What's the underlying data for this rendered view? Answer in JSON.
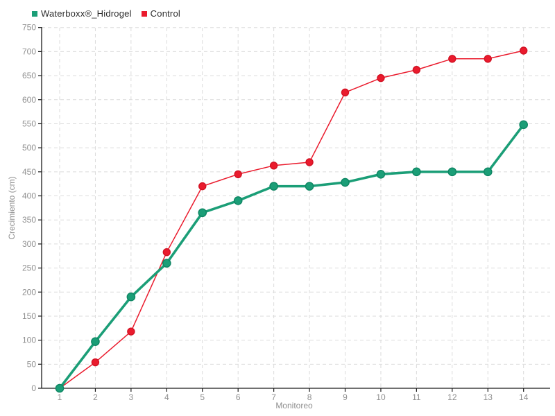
{
  "chart_data": {
    "type": "line",
    "title": "",
    "xlabel": "Monitoreo",
    "ylabel": "Crecimiento (cm)",
    "categories": [
      1,
      2,
      3,
      4,
      5,
      6,
      7,
      8,
      9,
      10,
      11,
      12,
      13,
      14
    ],
    "xtick_labels": [
      "1",
      "2",
      "3",
      "4",
      "5",
      "6",
      "7",
      "8",
      "9",
      "10",
      "11",
      "12",
      "13",
      "14"
    ],
    "yticks": [
      0,
      50,
      100,
      150,
      200,
      250,
      300,
      350,
      400,
      450,
      500,
      550,
      600,
      650,
      700,
      750
    ],
    "ylim": [
      0,
      750
    ],
    "grid": "dashed-both-axes",
    "legend_position": "top-left",
    "series": [
      {
        "name": "Waterboxx®_Hidrogel",
        "color": "#1b9e77",
        "marker_stroke": "#0e8663",
        "line_width": 3.6,
        "marker_radius": 5.6,
        "values": [
          0,
          97,
          190,
          260,
          365,
          390,
          420,
          420,
          428,
          445,
          450,
          450,
          450,
          548
        ]
      },
      {
        "name": "Control",
        "color": "#ea1b2d",
        "marker_stroke": "#d21224",
        "line_width": 1.5,
        "marker_radius": 5.0,
        "values": [
          0,
          54,
          118,
          283,
          420,
          445,
          463,
          470,
          615,
          645,
          662,
          685,
          685,
          702
        ]
      }
    ],
    "style": {
      "axis_color": "#1a1a1a",
      "grid_color": "#dbdbdb",
      "tick_label_color": "#8f8f8f",
      "background": "#ffffff"
    }
  }
}
